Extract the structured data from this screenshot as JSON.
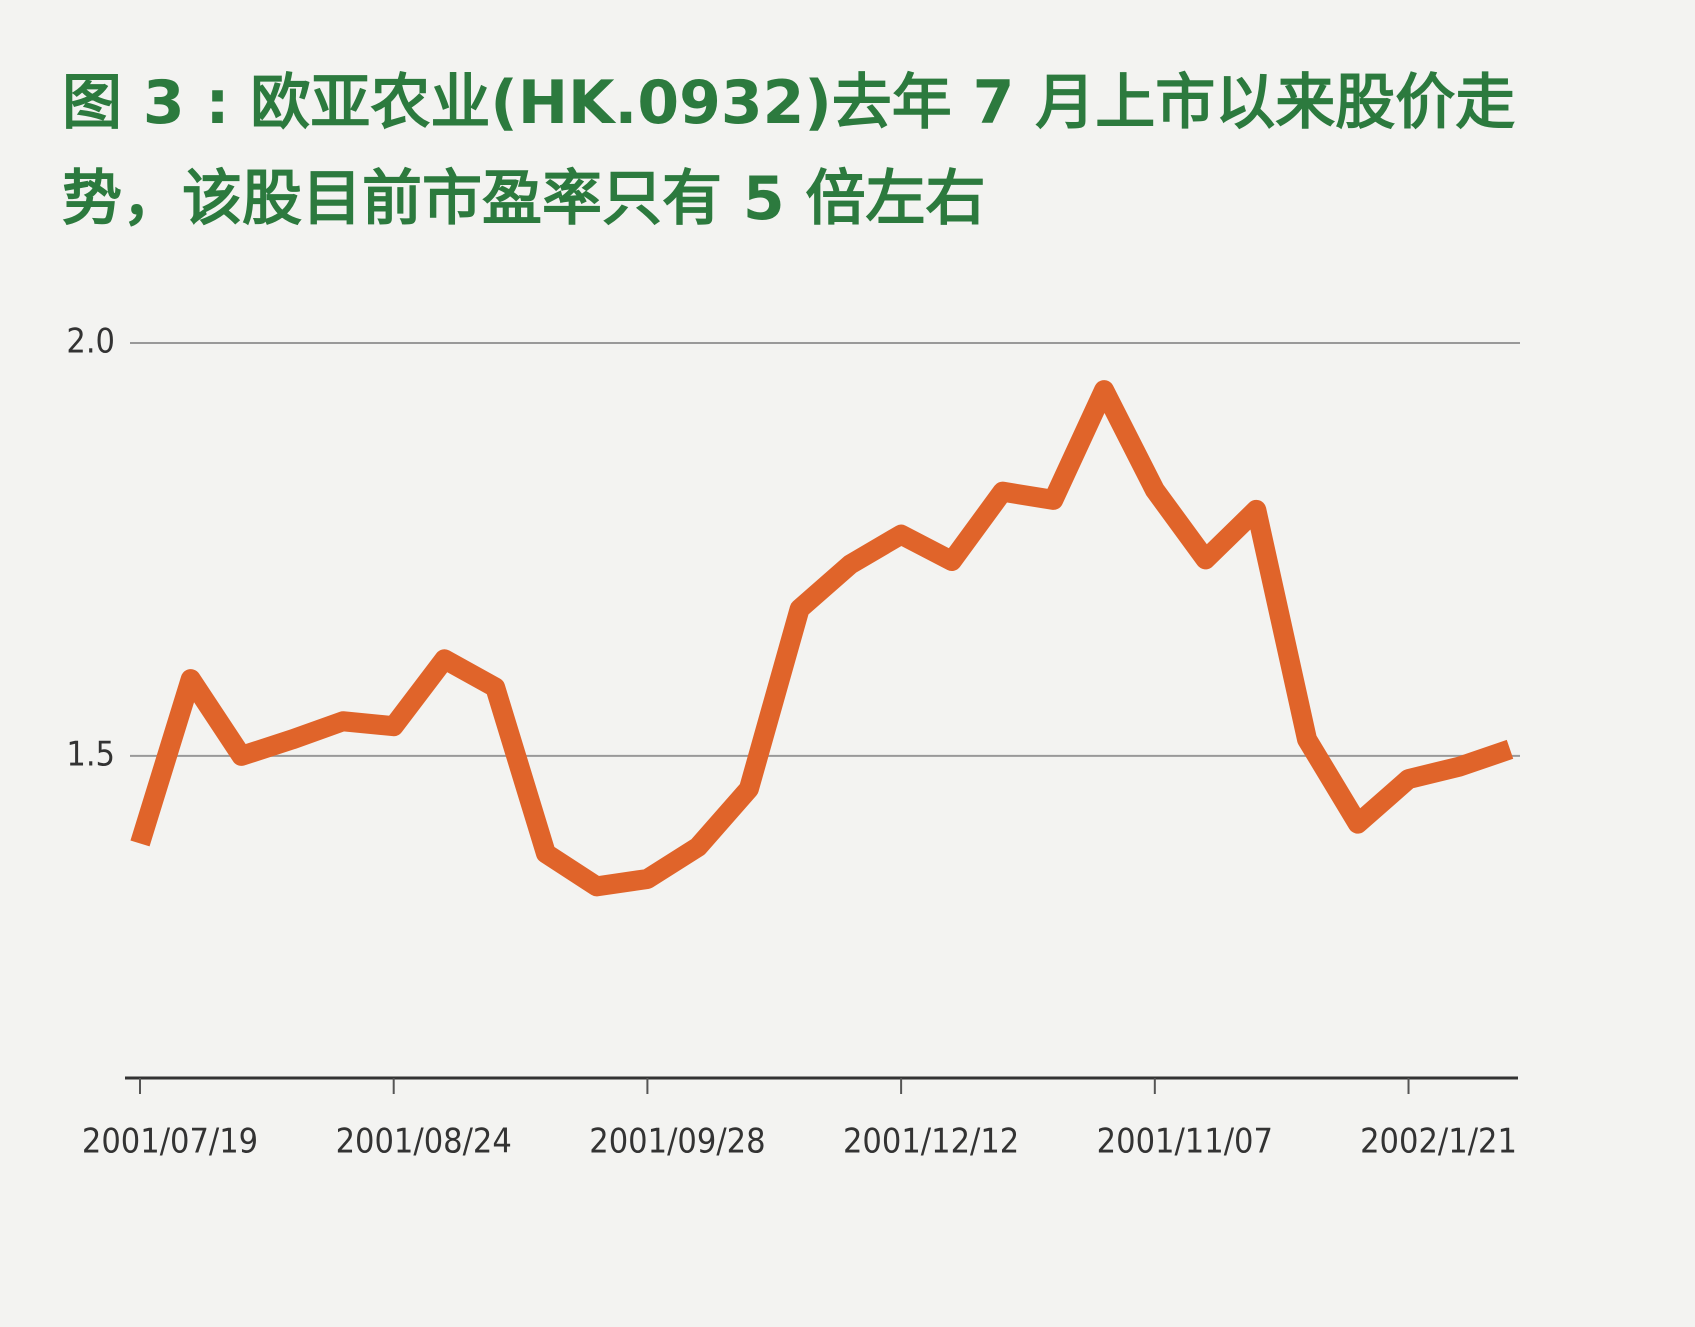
{
  "chart_data": {
    "type": "line",
    "title": "图 3 : 欧亚农业(HK.0932)去年 7 月上市以来股价走势，该股目前市盈率只有 5 倍左右",
    "categories": [
      "2001/07/19",
      null,
      null,
      null,
      null,
      "2001/08/24",
      null,
      null,
      null,
      null,
      "2001/09/28",
      null,
      null,
      null,
      null,
      "2001/12/12",
      null,
      null,
      null,
      null,
      "2001/11/07",
      null,
      null,
      null,
      null,
      "2002/1/21",
      null,
      null
    ],
    "series": [
      {
        "color": "#e0642a",
        "values": [
          1.394,
          1.593,
          1.5,
          1.52,
          1.542,
          1.536,
          1.617,
          1.583,
          1.382,
          1.342,
          1.351,
          1.39,
          1.46,
          1.678,
          1.732,
          1.768,
          1.736,
          1.82,
          1.81,
          1.943,
          1.822,
          1.738,
          1.798,
          1.52,
          1.418,
          1.472,
          1.487,
          1.508
        ]
      }
    ],
    "ylim": [
      1.11,
      2.0
    ],
    "yticks": [
      {
        "value": 1.5,
        "label": "1.5"
      },
      {
        "value": 2,
        "label": "2.0"
      }
    ],
    "grid": true
  }
}
